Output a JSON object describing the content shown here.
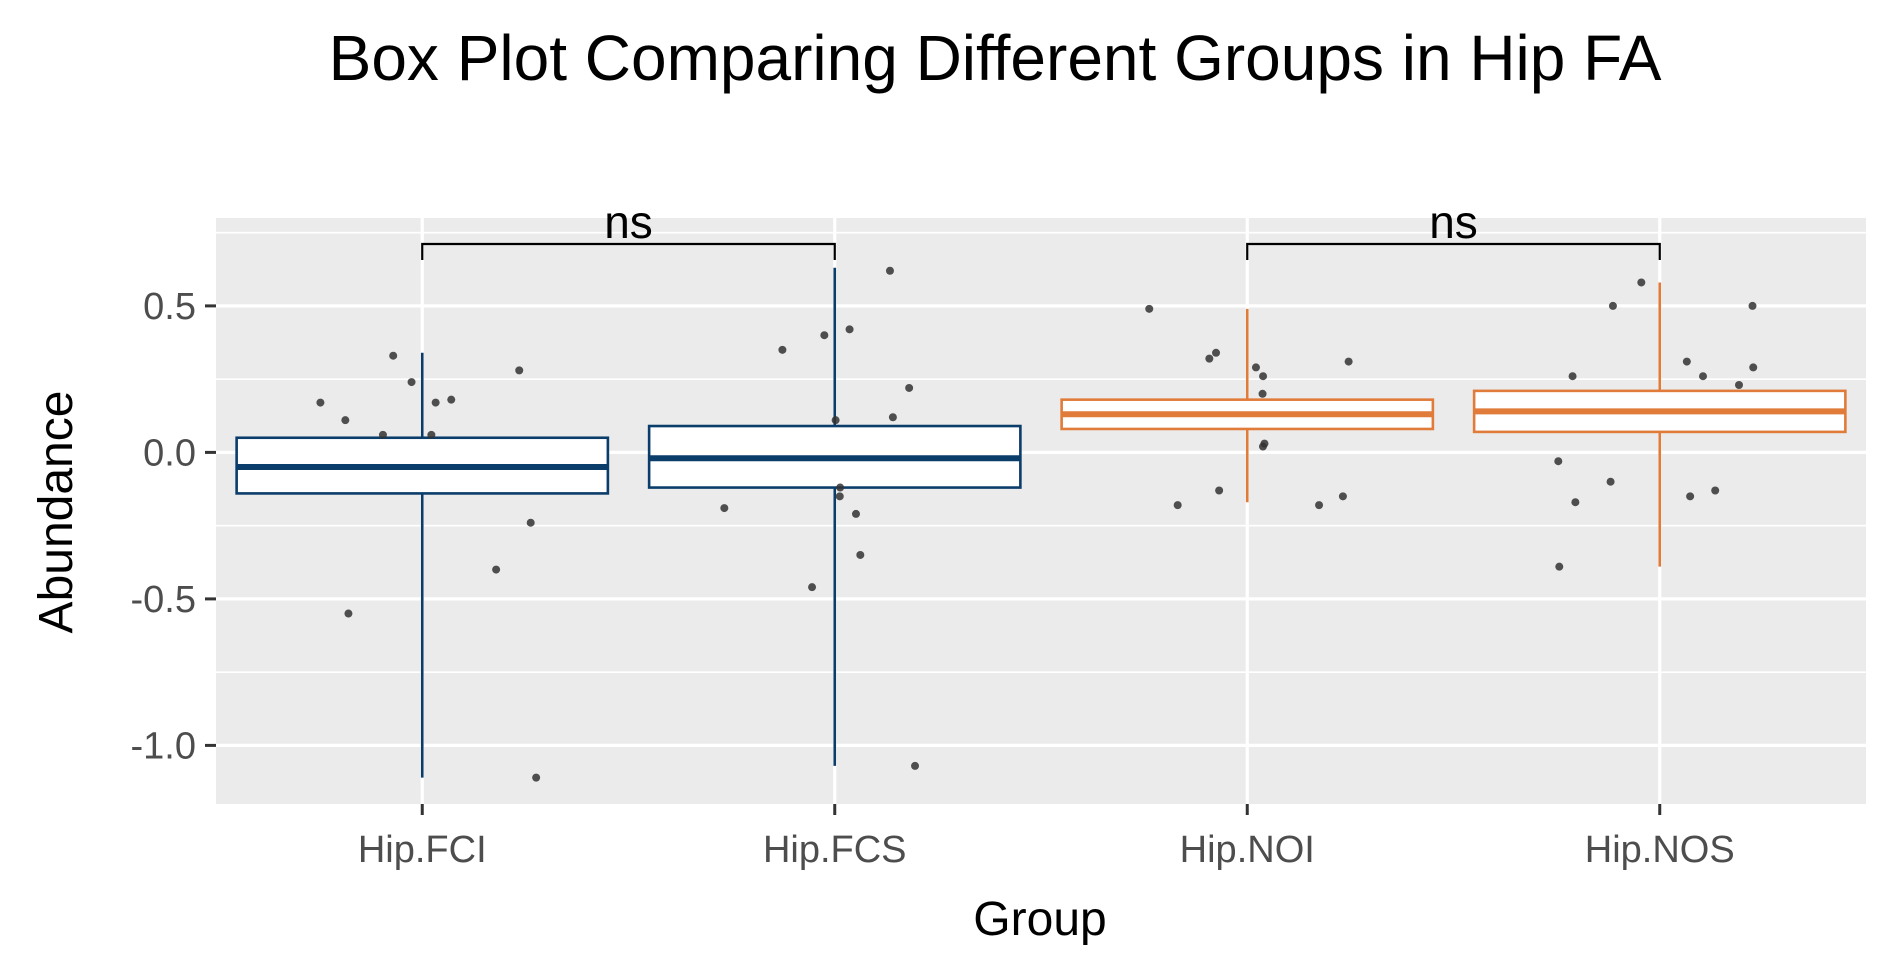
{
  "chart_data": {
    "type": "box",
    "title": "Box Plot Comparing Different Groups in Hip FA",
    "xlabel": "Group",
    "ylabel": "Abundance",
    "ylim": [
      -1.2,
      0.8
    ],
    "yticks": [
      -1.0,
      -0.5,
      0.0,
      0.5
    ],
    "ytick_labels": [
      "-1.0",
      "-0.5",
      "0.0",
      "0.5"
    ],
    "grid": true,
    "categories": [
      "Hip.FCI",
      "Hip.FCS",
      "Hip.NOI",
      "Hip.NOS"
    ],
    "colors": {
      "Hip.FCI": "#0b3d6b",
      "Hip.FCS": "#0b3d6b",
      "Hip.NOI": "#e07b39",
      "Hip.NOS": "#e07b39",
      "panel_bg": "#ebebeb",
      "grid": "#ffffff",
      "points": "#333333"
    },
    "boxes": [
      {
        "group": "Hip.FCI",
        "lower_whisker": -1.11,
        "q1": -0.14,
        "median": -0.05,
        "q3": 0.05,
        "upper_whisker": 0.34
      },
      {
        "group": "Hip.FCS",
        "lower_whisker": -1.07,
        "q1": -0.12,
        "median": -0.02,
        "q3": 0.09,
        "upper_whisker": 0.63
      },
      {
        "group": "Hip.NOI",
        "lower_whisker": -0.17,
        "q1": 0.08,
        "median": 0.13,
        "q3": 0.18,
        "upper_whisker": 0.49
      },
      {
        "group": "Hip.NOS",
        "lower_whisker": -0.39,
        "q1": 0.07,
        "median": 0.14,
        "q3": 0.21,
        "upper_whisker": 0.58
      }
    ],
    "points": [
      {
        "group": "Hip.FCI",
        "values": [
          0.28,
          0.17,
          0.17,
          0.33,
          0.24,
          0.18,
          0.11,
          0.06,
          0.06,
          -0.24,
          -0.4,
          -0.55,
          -1.11
        ]
      },
      {
        "group": "Hip.FCS",
        "values": [
          0.62,
          0.42,
          0.4,
          0.35,
          0.22,
          0.12,
          0.11,
          -0.12,
          -0.15,
          -0.19,
          -0.21,
          -0.35,
          -0.46,
          -1.07
        ]
      },
      {
        "group": "Hip.NOI",
        "values": [
          0.49,
          0.34,
          0.32,
          0.31,
          0.29,
          0.26,
          0.2,
          0.03,
          0.02,
          -0.13,
          -0.15,
          -0.18,
          -0.18
        ]
      },
      {
        "group": "Hip.NOS",
        "values": [
          0.58,
          0.5,
          0.5,
          0.31,
          0.29,
          0.26,
          0.26,
          0.23,
          -0.03,
          -0.1,
          -0.13,
          -0.15,
          -0.17,
          -0.39
        ]
      }
    ],
    "comparisons": [
      {
        "groups": [
          "Hip.FCI",
          "Hip.FCS"
        ],
        "label": "ns"
      },
      {
        "groups": [
          "Hip.NOI",
          "Hip.NOS"
        ],
        "label": "ns"
      }
    ]
  }
}
